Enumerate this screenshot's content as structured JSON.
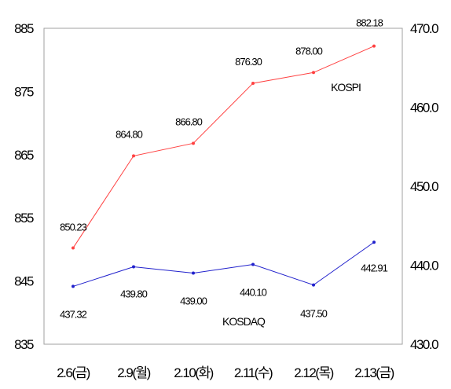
{
  "chart_data": {
    "type": "line",
    "categories": [
      "2.6(금)",
      "2.9(월)",
      "2.10(화)",
      "2.11(수)",
      "2.12(목)",
      "2.13(금)"
    ],
    "left_axis": {
      "ticks": [
        "835",
        "845",
        "855",
        "865",
        "875",
        "885"
      ],
      "range": [
        835,
        885
      ]
    },
    "right_axis": {
      "ticks": [
        "430.0",
        "440.0",
        "450.0",
        "460.0",
        "470.0"
      ],
      "range": [
        430,
        470
      ]
    },
    "series": [
      {
        "name": "KOSPI",
        "axis": "left",
        "color": "#ff4040",
        "values": [
          850.23,
          864.8,
          866.8,
          876.3,
          878.0,
          882.18
        ],
        "labels": [
          "850.23",
          "864.80",
          "866.80",
          "876.30",
          "878.00",
          "882.18"
        ]
      },
      {
        "name": "KOSDAQ",
        "axis": "right",
        "color": "#2020cc",
        "values": [
          437.32,
          439.8,
          439.0,
          440.1,
          437.5,
          442.91
        ],
        "labels": [
          "437.32",
          "439.80",
          "439.00",
          "440.10",
          "437.50",
          "442.91"
        ]
      }
    ],
    "grid": false,
    "legend": "inline labels"
  }
}
